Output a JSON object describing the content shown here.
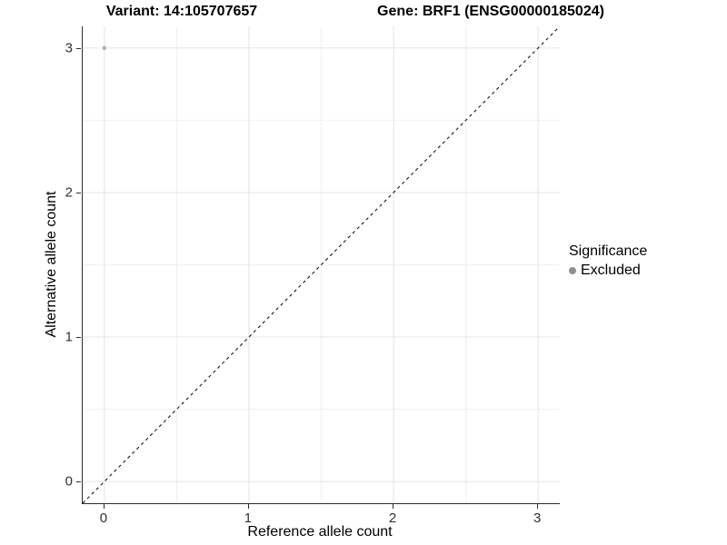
{
  "header": {
    "variant_title": "Variant: 14:105707657",
    "gene_title": "Gene: BRF1 (ENSG00000185024)"
  },
  "chart_data": {
    "type": "scatter",
    "xlabel": "Reference allele count",
    "ylabel": "Alternative allele count",
    "xlim": [
      -0.15,
      3.15
    ],
    "ylim": [
      -0.15,
      3.15
    ],
    "xticks": [
      0,
      1,
      2,
      3
    ],
    "yticks": [
      0,
      1,
      2,
      3
    ],
    "minor_xticks": [
      0.5,
      1.5,
      2.5
    ],
    "minor_yticks": [
      0.5,
      1.5,
      2.5
    ],
    "grid": true,
    "series": [
      {
        "name": "Excluded",
        "color": "#b3b3b3",
        "points": [
          {
            "x": 0,
            "y": 3
          }
        ]
      }
    ],
    "reference_line": {
      "slope": 1,
      "intercept": 0,
      "style": "dashed",
      "color": "#000000"
    },
    "legend": {
      "title": "Significance",
      "position": "right",
      "items": [
        {
          "label": "Excluded",
          "color": "#8f8f8f",
          "marker": "circle"
        }
      ]
    },
    "colors": {
      "grid_major": "#e4e4e4",
      "grid_minor": "#f0f0f0",
      "axis_line": "#2b2b2b",
      "tick_text": "#303030",
      "background": "#ffffff"
    }
  }
}
